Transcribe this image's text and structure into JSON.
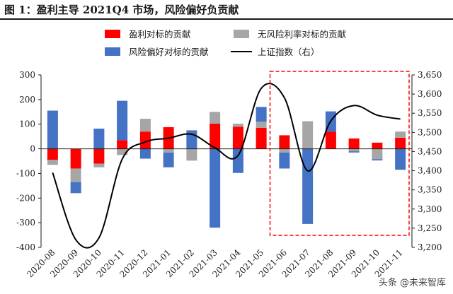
{
  "figure": {
    "title": "图 1：盈利主导 2021Q4 市场，风险偏好负贡献",
    "watermark": "头条 @未来智库"
  },
  "chart_data": {
    "type": "bar",
    "stacked": true,
    "categories": [
      "2020-08",
      "2020-09",
      "2020-10",
      "2020-11",
      "2020-12",
      "2021-01",
      "2021-02",
      "2021-03",
      "2021-04",
      "2021-05",
      "2021-06",
      "2021-07",
      "2021-08",
      "2021-09",
      "2021-10",
      "2021-11"
    ],
    "series": [
      {
        "name": "盈利对标的贡献",
        "axis": "left",
        "color": "#ff0000",
        "values": [
          -45,
          -80,
          -60,
          35,
          70,
          88,
          0,
          102,
          90,
          85,
          55,
          0,
          70,
          42,
          25,
          45
        ]
      },
      {
        "name": "无风险利率对标的贡献",
        "axis": "left",
        "color": "#a6a6a6",
        "values": [
          -20,
          -55,
          -15,
          -25,
          52,
          -15,
          -48,
          48,
          12,
          25,
          -15,
          112,
          0,
          -10,
          -42,
          25
        ]
      },
      {
        "name": "风险偏好对标的贡献",
        "axis": "left",
        "color": "#4472c4",
        "values": [
          155,
          -45,
          82,
          160,
          -40,
          -60,
          75,
          -320,
          -98,
          60,
          -65,
          -305,
          82,
          -5,
          -5,
          -85
        ]
      }
    ],
    "line": {
      "name": "上证指数（右）",
      "axis": "right",
      "color": "#000000",
      "values": [
        3395,
        3220,
        3225,
        3430,
        3475,
        3485,
        3495,
        3460,
        3440,
        3615,
        3590,
        3400,
        3530,
        3570,
        3545,
        3535
      ]
    },
    "y_left": {
      "min": -400,
      "max": 300,
      "ticks": [
        -400,
        -300,
        -200,
        -100,
        0,
        100,
        200,
        300
      ]
    },
    "y_right": {
      "min": 3200,
      "max": 3650,
      "ticks": [
        3200,
        3250,
        3300,
        3350,
        3400,
        3450,
        3500,
        3550,
        3600,
        3650
      ],
      "tick_labels": [
        "3,200",
        "3,250",
        "3,300",
        "3,350",
        "3,400",
        "3,450",
        "3,500",
        "3,550",
        "3,600",
        "3,650"
      ]
    },
    "grid": false,
    "legend_position": "top",
    "highlight": {
      "from": "2021-06",
      "to": "2021-11",
      "style": "dashed",
      "color": "#ff0000"
    }
  }
}
